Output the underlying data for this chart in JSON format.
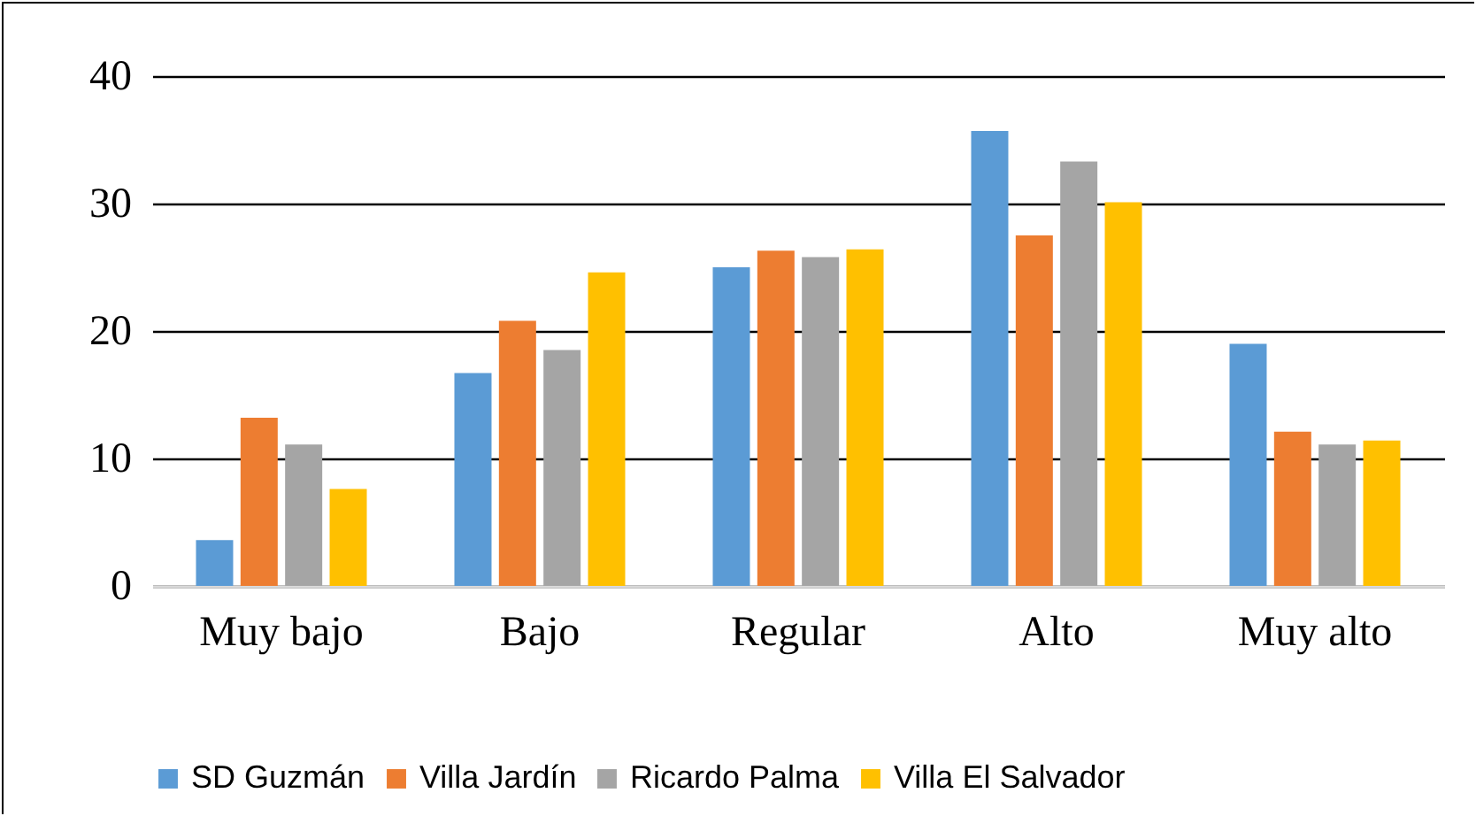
{
  "chart_data": {
    "type": "bar",
    "categories": [
      "Muy bajo",
      "Bajo",
      "Regular",
      "Alto",
      "Muy alto"
    ],
    "series": [
      {
        "name": "SD Guzmán",
        "color": "#5b9bd5",
        "values": [
          3.6,
          16.7,
          25.0,
          35.7,
          19.0
        ]
      },
      {
        "name": "Villa Jardín",
        "color": "#ed7d31",
        "values": [
          13.2,
          20.8,
          26.3,
          27.5,
          12.1
        ]
      },
      {
        "name": "Ricardo Palma",
        "color": "#a5a5a5",
        "values": [
          11.1,
          18.5,
          25.8,
          33.3,
          11.1
        ]
      },
      {
        "name": "Villa El Salvador",
        "color": "#ffc000",
        "values": [
          7.6,
          24.6,
          26.4,
          30.1,
          11.4
        ]
      }
    ],
    "ylim": [
      0,
      40
    ],
    "yticks": [
      0,
      10,
      20,
      30,
      40
    ],
    "grid": "y",
    "legend": "bottom"
  }
}
